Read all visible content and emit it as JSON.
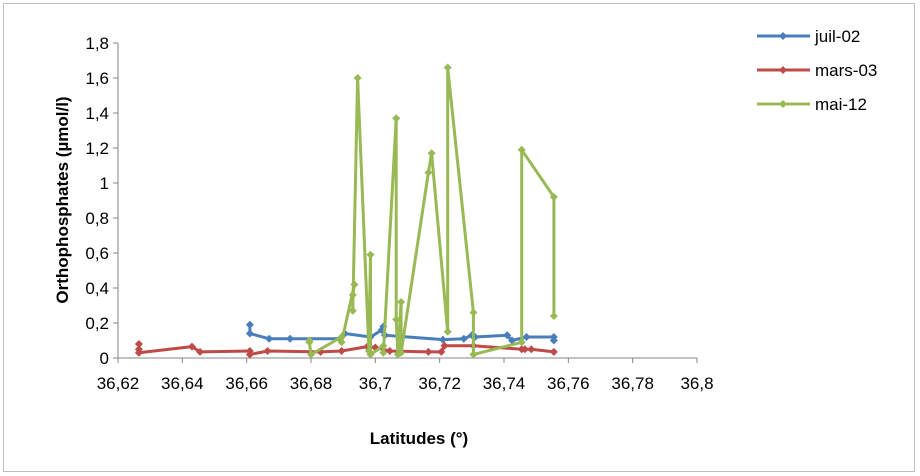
{
  "chart_data": {
    "type": "line",
    "title": "",
    "xlabel": "Latitudes (°)",
    "ylabel": "Orthophosphates (µmol/l)",
    "xlim": [
      36.62,
      36.8
    ],
    "ylim": [
      0,
      1.8
    ],
    "x_ticks": [
      36.62,
      36.64,
      36.66,
      36.68,
      36.7,
      36.72,
      36.74,
      36.76,
      36.78,
      36.8
    ],
    "x_tick_labels": [
      "36,62",
      "36,64",
      "36,66",
      "36,68",
      "36,7",
      "36,72",
      "36,74",
      "36,76",
      "36,78",
      "36,8"
    ],
    "y_ticks": [
      0,
      0.2,
      0.4,
      0.6,
      0.8,
      1,
      1.2,
      1.4,
      1.6,
      1.8
    ],
    "y_tick_labels": [
      "0",
      "0,2",
      "0,4",
      "0,6",
      "0,8",
      "1",
      "1,2",
      "1,4",
      "1,6",
      "1,8"
    ],
    "grid": false,
    "legend_position": "top-right",
    "series": [
      {
        "name": "juil-02",
        "color": "#4a7ebb",
        "points": [
          [
            36.661,
            0.19
          ],
          [
            36.661,
            0.14
          ],
          [
            36.667,
            0.11
          ],
          [
            36.6735,
            0.11
          ],
          [
            36.689,
            0.11
          ],
          [
            36.6905,
            0.14
          ],
          [
            36.6985,
            0.12
          ],
          [
            36.702,
            0.16
          ],
          [
            36.7025,
            0.18
          ],
          [
            36.703,
            0.13
          ],
          [
            36.721,
            0.105
          ],
          [
            36.7275,
            0.11
          ],
          [
            36.73,
            0.13
          ],
          [
            36.731,
            0.12
          ],
          [
            36.741,
            0.13
          ],
          [
            36.7425,
            0.1
          ],
          [
            36.747,
            0.12
          ],
          [
            36.7555,
            0.12
          ],
          [
            36.7555,
            0.1
          ]
        ]
      },
      {
        "name": "mars-03",
        "color": "#be4b48",
        "points": [
          [
            36.6265,
            0.08
          ],
          [
            36.6265,
            0.05
          ],
          [
            36.6265,
            0.03
          ],
          [
            36.643,
            0.065
          ],
          [
            36.6455,
            0.035
          ],
          [
            36.661,
            0.04
          ],
          [
            36.661,
            0.02
          ],
          [
            36.6665,
            0.04
          ],
          [
            36.683,
            0.035
          ],
          [
            36.6895,
            0.04
          ],
          [
            36.6975,
            0.065
          ],
          [
            36.7,
            0.06
          ],
          [
            36.7045,
            0.04
          ],
          [
            36.7165,
            0.035
          ],
          [
            36.7205,
            0.035
          ],
          [
            36.7215,
            0.07
          ],
          [
            36.7305,
            0.07
          ],
          [
            36.7455,
            0.05
          ],
          [
            36.7465,
            0.05
          ],
          [
            36.7485,
            0.05
          ],
          [
            36.7555,
            0.035
          ]
        ]
      },
      {
        "name": "mai-12",
        "color": "#98b954",
        "points": [
          [
            36.6795,
            0.1
          ],
          [
            36.6795,
            0.09
          ],
          [
            36.68,
            0.02
          ],
          [
            36.6895,
            0.12
          ],
          [
            36.6895,
            0.09
          ],
          [
            36.6935,
            0.42
          ],
          [
            36.693,
            0.36
          ],
          [
            36.693,
            0.27
          ],
          [
            36.6945,
            1.6
          ],
          [
            36.698,
            0.04
          ],
          [
            36.6985,
            0.59
          ],
          [
            36.6985,
            0.02
          ],
          [
            36.7025,
            0.07
          ],
          [
            36.7025,
            0.03
          ],
          [
            36.7065,
            1.37
          ],
          [
            36.7065,
            0.22
          ],
          [
            36.707,
            0.02
          ],
          [
            36.708,
            0.32
          ],
          [
            36.708,
            0.03
          ],
          [
            36.7165,
            1.06
          ],
          [
            36.7175,
            1.17
          ],
          [
            36.7225,
            0.15
          ],
          [
            36.7225,
            1.66
          ],
          [
            36.7305,
            0.26
          ],
          [
            36.7305,
            0.02
          ],
          [
            36.7455,
            0.09
          ],
          [
            36.7455,
            1.19
          ],
          [
            36.7555,
            0.92
          ],
          [
            36.7555,
            0.24
          ]
        ]
      }
    ]
  }
}
